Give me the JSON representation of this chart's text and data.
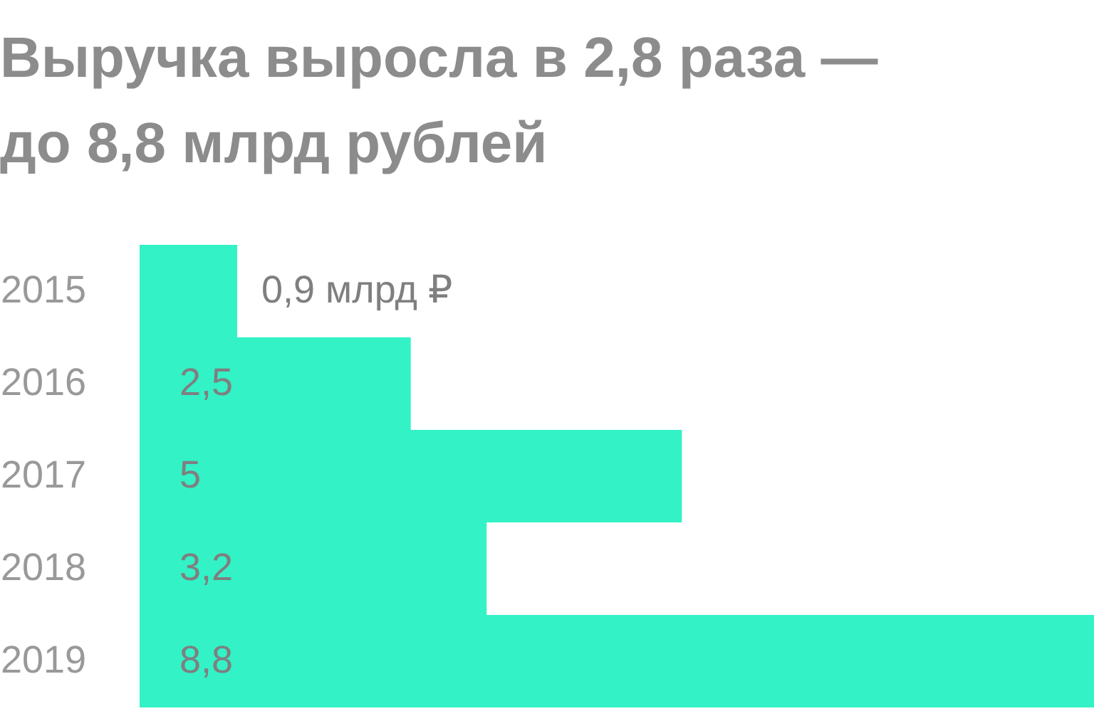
{
  "chart_data": {
    "type": "bar",
    "orientation": "horizontal",
    "title": "Выручка выросла в 2,8 раза —\nдо 8,8 млрд рублей",
    "categories": [
      "2015",
      "2016",
      "2017",
      "2018",
      "2019"
    ],
    "values": [
      0.9,
      2.5,
      5,
      3.2,
      8.8
    ],
    "value_labels": [
      "0,9 млрд ₽",
      "2,5",
      "5",
      "3,2",
      "8,8"
    ],
    "color": "#33f2c6",
    "xlim": [
      0,
      8.8
    ],
    "grid": false
  }
}
